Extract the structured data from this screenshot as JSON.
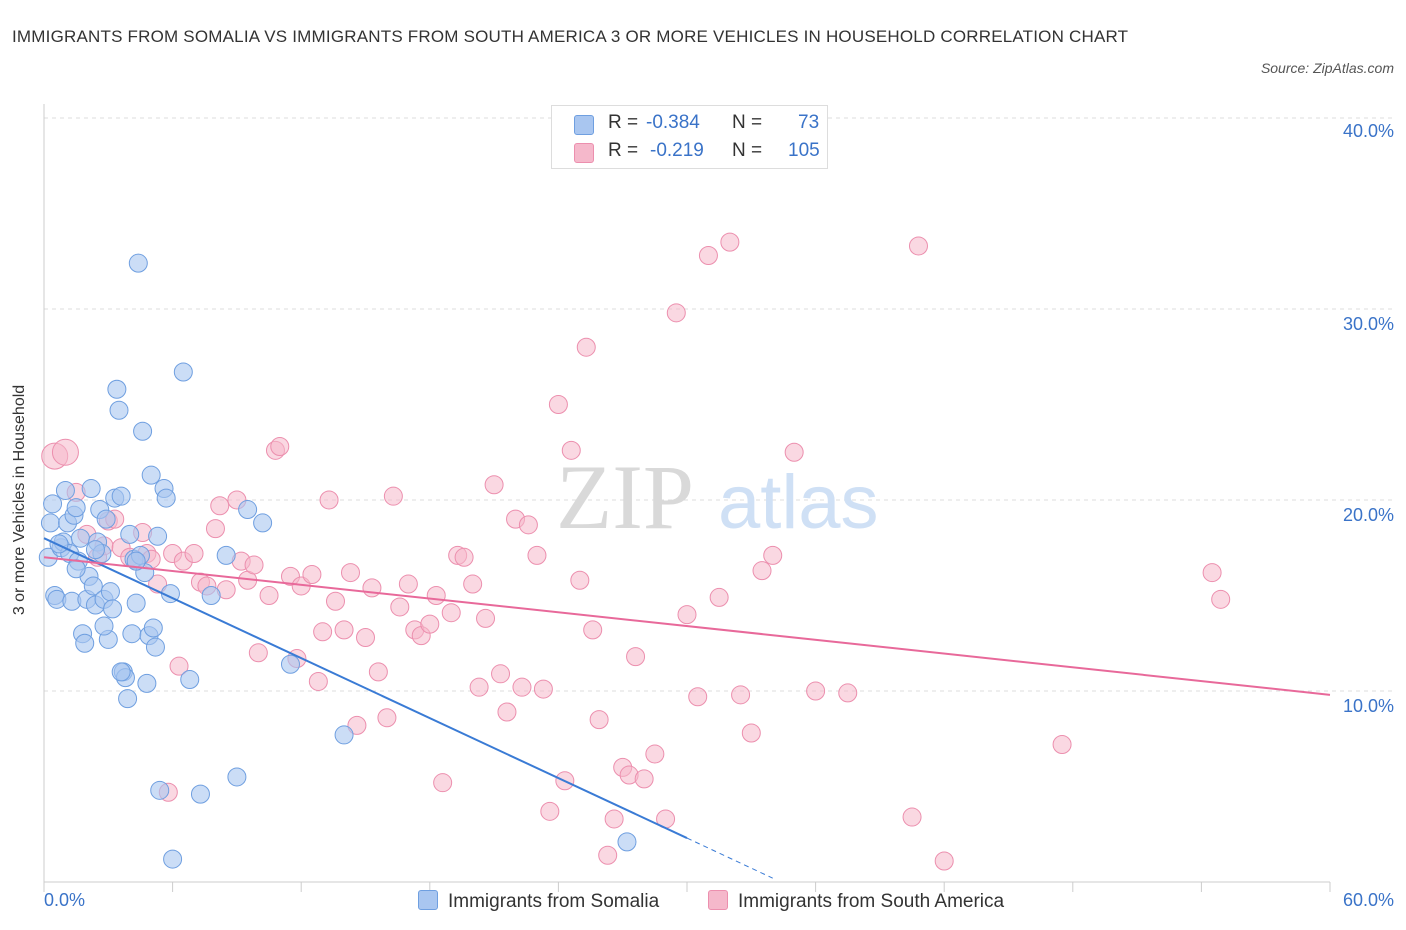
{
  "title": "IMMIGRANTS FROM SOMALIA VS IMMIGRANTS FROM SOUTH AMERICA 3 OR MORE VEHICLES IN HOUSEHOLD CORRELATION CHART",
  "source": "Source: ZipAtlas.com",
  "watermark": {
    "zip": "ZIP",
    "atlas": "atlas"
  },
  "legend": {
    "rows": [
      {
        "r_label": "R =",
        "r_value": "-0.384",
        "n_label": "N =",
        "n_value": "73",
        "color": "#a9c6f0"
      },
      {
        "r_label": "R =",
        "r_value": "-0.219",
        "n_label": "N =",
        "n_value": "105",
        "color": "#f5b8cb"
      }
    ]
  },
  "bottom_legend": {
    "somalia": "Immigrants from Somalia",
    "south_america": "Immigrants from South America"
  },
  "axes": {
    "x_min_label": "0.0%",
    "x_max_label": "60.0%",
    "y_ticks": [
      "40.0%",
      "30.0%",
      "20.0%",
      "10.0%"
    ]
  },
  "colors": {
    "blue": "#3a7bd5",
    "blue_fill": "#a9c6f0",
    "pink": "#e8699a",
    "pink_fill": "#f5b8cb",
    "tick_text": "#3a73c8"
  },
  "chart_data": {
    "type": "scatter",
    "title": "IMMIGRANTS FROM SOMALIA VS IMMIGRANTS FROM SOUTH AMERICA 3 OR MORE VEHICLES IN HOUSEHOLD CORRELATION CHART",
    "xlabel": "",
    "ylabel": "3 or more Vehicles in Household",
    "xlim": [
      0,
      60
    ],
    "ylim": [
      0,
      40
    ],
    "grid": true,
    "legend_placement": "top-center",
    "series": [
      {
        "name": "Immigrants from Somalia",
        "R": -0.384,
        "N": 73,
        "trend": {
          "x0": 0,
          "y0": 18.0,
          "x1": 30,
          "y1": 2.3,
          "dash_to_x": 34,
          "dash_to_y": 0.2
        },
        "points": [
          [
            0.2,
            17.0
          ],
          [
            0.3,
            18.8
          ],
          [
            0.4,
            19.8
          ],
          [
            0.5,
            15.0
          ],
          [
            0.6,
            14.8
          ],
          [
            0.8,
            17.5
          ],
          [
            0.9,
            17.8
          ],
          [
            1.0,
            20.5
          ],
          [
            1.1,
            18.8
          ],
          [
            1.2,
            17.2
          ],
          [
            1.3,
            14.7
          ],
          [
            1.4,
            19.2
          ],
          [
            1.5,
            19.6
          ],
          [
            1.6,
            16.8
          ],
          [
            1.7,
            18.0
          ],
          [
            1.8,
            13.0
          ],
          [
            1.9,
            12.5
          ],
          [
            2.0,
            14.8
          ],
          [
            2.1,
            16.0
          ],
          [
            2.2,
            20.6
          ],
          [
            2.3,
            15.5
          ],
          [
            2.4,
            14.5
          ],
          [
            2.5,
            17.8
          ],
          [
            2.6,
            19.5
          ],
          [
            2.7,
            17.2
          ],
          [
            2.8,
            14.8
          ],
          [
            2.9,
            19.0
          ],
          [
            3.0,
            12.7
          ],
          [
            3.1,
            15.2
          ],
          [
            3.2,
            14.3
          ],
          [
            3.3,
            20.1
          ],
          [
            3.4,
            25.8
          ],
          [
            3.5,
            24.7
          ],
          [
            3.6,
            20.2
          ],
          [
            3.7,
            11.0
          ],
          [
            3.8,
            10.7
          ],
          [
            3.9,
            9.6
          ],
          [
            4.0,
            18.2
          ],
          [
            4.1,
            13.0
          ],
          [
            4.2,
            16.9
          ],
          [
            4.3,
            14.6
          ],
          [
            4.4,
            32.4
          ],
          [
            4.5,
            17.1
          ],
          [
            4.6,
            23.6
          ],
          [
            4.7,
            16.2
          ],
          [
            4.8,
            10.4
          ],
          [
            4.9,
            12.9
          ],
          [
            5.0,
            21.3
          ],
          [
            5.1,
            13.3
          ],
          [
            5.2,
            12.3
          ],
          [
            5.3,
            18.1
          ],
          [
            5.4,
            4.8
          ],
          [
            5.6,
            20.6
          ],
          [
            5.7,
            20.1
          ],
          [
            5.9,
            15.1
          ],
          [
            6.0,
            1.2
          ],
          [
            6.5,
            26.7
          ],
          [
            6.8,
            10.6
          ],
          [
            7.3,
            4.6
          ],
          [
            7.8,
            15.0
          ],
          [
            8.5,
            17.1
          ],
          [
            9.0,
            5.5
          ],
          [
            9.5,
            19.5
          ],
          [
            10.2,
            18.8
          ],
          [
            11.5,
            11.4
          ],
          [
            14.0,
            7.7
          ],
          [
            27.2,
            2.1
          ],
          [
            2.4,
            17.4
          ],
          [
            1.5,
            16.4
          ],
          [
            3.6,
            11.0
          ],
          [
            2.8,
            13.4
          ],
          [
            0.7,
            17.7
          ],
          [
            4.3,
            16.8
          ]
        ]
      },
      {
        "name": "Immigrants from South America",
        "R": -0.219,
        "N": 105,
        "trend": {
          "x0": 0,
          "y0": 17.0,
          "x1": 60,
          "y1": 9.8
        },
        "points": [
          [
            0.5,
            22.3
          ],
          [
            1.0,
            22.5
          ],
          [
            1.5,
            20.4
          ],
          [
            2.0,
            18.2
          ],
          [
            2.5,
            17.0
          ],
          [
            2.8,
            17.6
          ],
          [
            3.0,
            18.9
          ],
          [
            3.3,
            19.0
          ],
          [
            3.6,
            17.5
          ],
          [
            4.0,
            17.0
          ],
          [
            4.3,
            16.8
          ],
          [
            4.6,
            18.3
          ],
          [
            4.8,
            17.2
          ],
          [
            5.0,
            16.9
          ],
          [
            5.3,
            15.6
          ],
          [
            5.8,
            4.7
          ],
          [
            6.0,
            17.2
          ],
          [
            6.3,
            11.3
          ],
          [
            6.5,
            16.8
          ],
          [
            7.0,
            17.2
          ],
          [
            7.3,
            15.7
          ],
          [
            7.6,
            15.5
          ],
          [
            8.0,
            18.5
          ],
          [
            8.2,
            19.7
          ],
          [
            8.5,
            15.3
          ],
          [
            9.0,
            20.0
          ],
          [
            9.2,
            16.8
          ],
          [
            9.5,
            15.8
          ],
          [
            9.8,
            16.6
          ],
          [
            10.0,
            12.0
          ],
          [
            10.5,
            15.0
          ],
          [
            10.8,
            22.6
          ],
          [
            11.0,
            22.8
          ],
          [
            11.5,
            16.0
          ],
          [
            11.8,
            11.7
          ],
          [
            12.0,
            15.5
          ],
          [
            12.5,
            16.1
          ],
          [
            12.8,
            10.5
          ],
          [
            13.0,
            13.1
          ],
          [
            13.3,
            20.0
          ],
          [
            13.6,
            14.7
          ],
          [
            14.0,
            13.2
          ],
          [
            14.3,
            16.2
          ],
          [
            14.6,
            8.2
          ],
          [
            15.0,
            12.8
          ],
          [
            15.3,
            15.4
          ],
          [
            15.6,
            11.0
          ],
          [
            16.0,
            8.6
          ],
          [
            16.3,
            20.2
          ],
          [
            16.6,
            14.4
          ],
          [
            17.0,
            15.6
          ],
          [
            17.3,
            13.2
          ],
          [
            17.6,
            12.9
          ],
          [
            18.0,
            13.5
          ],
          [
            18.3,
            15.0
          ],
          [
            18.6,
            5.2
          ],
          [
            19.0,
            14.1
          ],
          [
            19.3,
            17.1
          ],
          [
            19.6,
            17.0
          ],
          [
            20.0,
            15.6
          ],
          [
            20.3,
            10.2
          ],
          [
            20.6,
            13.8
          ],
          [
            21.0,
            20.8
          ],
          [
            21.3,
            10.9
          ],
          [
            21.6,
            8.9
          ],
          [
            22.0,
            19.0
          ],
          [
            22.3,
            10.2
          ],
          [
            22.6,
            18.7
          ],
          [
            23.0,
            17.1
          ],
          [
            23.3,
            10.1
          ],
          [
            23.6,
            3.7
          ],
          [
            24.0,
            25.0
          ],
          [
            24.3,
            5.3
          ],
          [
            24.6,
            22.6
          ],
          [
            25.0,
            15.8
          ],
          [
            25.3,
            28.0
          ],
          [
            25.6,
            13.2
          ],
          [
            25.9,
            8.5
          ],
          [
            26.3,
            1.4
          ],
          [
            26.6,
            3.3
          ],
          [
            27.0,
            6.0
          ],
          [
            27.3,
            5.6
          ],
          [
            27.6,
            11.8
          ],
          [
            28.0,
            5.4
          ],
          [
            28.5,
            6.7
          ],
          [
            29.0,
            3.3
          ],
          [
            29.5,
            29.8
          ],
          [
            30.0,
            14.0
          ],
          [
            30.5,
            9.7
          ],
          [
            31.0,
            32.8
          ],
          [
            31.5,
            14.9
          ],
          [
            32.0,
            33.5
          ],
          [
            32.5,
            9.8
          ],
          [
            33.0,
            7.8
          ],
          [
            33.5,
            16.3
          ],
          [
            34.0,
            17.1
          ],
          [
            35.0,
            22.5
          ],
          [
            36.0,
            10.0
          ],
          [
            37.5,
            9.9
          ],
          [
            40.5,
            3.4
          ],
          [
            40.8,
            33.3
          ],
          [
            42.0,
            1.1
          ],
          [
            47.5,
            7.2
          ],
          [
            54.5,
            16.2
          ],
          [
            54.9,
            14.8
          ]
        ]
      }
    ]
  }
}
